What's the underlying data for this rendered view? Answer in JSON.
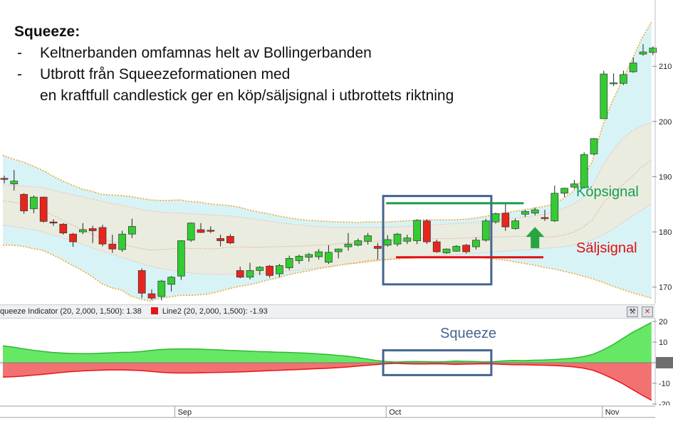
{
  "annotation": {
    "title": "Squeeze:",
    "bullets": [
      {
        "dash": "-",
        "lines": [
          "Keltnerbanden omfamnas helt av Bollingerbanden"
        ]
      },
      {
        "dash": "-",
        "lines": [
          "Utbrott från Squeezeformationen med",
          "en kraftfull candlestick ger en köp/säljsignal i utbrottets riktning"
        ]
      }
    ]
  },
  "labels": {
    "buy_signal": "Köpsignal",
    "sell_signal": "Säljsignal",
    "squeeze": "Squeeze"
  },
  "indicator_panel": {
    "legend_1": "queeze Indicator (20, 2,000, 1,500): 1.38",
    "legend_2": "Line2 (20, 2,000, 1,500): -1.93",
    "legend_2_color": "#e8141a"
  },
  "x_axis": {
    "labels": [
      "Sep",
      "Oct",
      "Nov"
    ]
  },
  "colors": {
    "up": "#33cc33",
    "down": "#e8251c",
    "bollinger_fill": "#d8f3f6",
    "keltner_fill": "#e9ecde",
    "buy": "#1a9e4f",
    "sell": "#e01010",
    "box": "#45658f",
    "pos_area": "#66e866",
    "neg_area": "#f27272"
  },
  "chart_data": [
    {
      "type": "candlestick",
      "title": "",
      "y_ticks": [
        170,
        180,
        190,
        200,
        210
      ],
      "ylim": [
        167,
        222
      ],
      "candles": [
        {
          "o": 189.7,
          "h": 190.2,
          "l": 188.8,
          "c": 189.5
        },
        {
          "o": 188.7,
          "h": 191.2,
          "l": 187.5,
          "c": 189.2
        },
        {
          "o": 186.8,
          "h": 187.0,
          "l": 183.3,
          "c": 183.8
        },
        {
          "o": 184.2,
          "h": 186.6,
          "l": 183.4,
          "c": 186.3
        },
        {
          "o": 186.3,
          "h": 186.4,
          "l": 181.7,
          "c": 181.9
        },
        {
          "o": 181.8,
          "h": 182.3,
          "l": 181.1,
          "c": 181.6
        },
        {
          "o": 181.4,
          "h": 181.6,
          "l": 179.5,
          "c": 179.8
        },
        {
          "o": 179.6,
          "h": 179.8,
          "l": 177.3,
          "c": 178.2
        },
        {
          "o": 180.0,
          "h": 181.6,
          "l": 179.6,
          "c": 180.4
        },
        {
          "o": 180.6,
          "h": 181.1,
          "l": 178.0,
          "c": 180.2
        },
        {
          "o": 180.8,
          "h": 181.3,
          "l": 177.4,
          "c": 177.8
        },
        {
          "o": 177.8,
          "h": 179.5,
          "l": 176.2,
          "c": 176.9
        },
        {
          "o": 176.8,
          "h": 180.2,
          "l": 176.4,
          "c": 179.6
        },
        {
          "o": 179.6,
          "h": 182.4,
          "l": 178.9,
          "c": 181.0
        },
        {
          "o": 173.0,
          "h": 173.4,
          "l": 168.0,
          "c": 168.9
        },
        {
          "o": 168.8,
          "h": 169.6,
          "l": 167.7,
          "c": 168.0
        },
        {
          "o": 168.3,
          "h": 171.3,
          "l": 167.6,
          "c": 171.1
        },
        {
          "o": 170.5,
          "h": 172.0,
          "l": 169.2,
          "c": 171.8
        },
        {
          "o": 172.0,
          "h": 178.5,
          "l": 171.3,
          "c": 178.4
        },
        {
          "o": 178.5,
          "h": 181.7,
          "l": 178.2,
          "c": 181.6
        },
        {
          "o": 180.4,
          "h": 181.6,
          "l": 179.8,
          "c": 179.9
        },
        {
          "o": 180.3,
          "h": 181.0,
          "l": 179.8,
          "c": 180.2
        },
        {
          "o": 178.8,
          "h": 179.5,
          "l": 177.4,
          "c": 178.4
        },
        {
          "o": 179.2,
          "h": 179.6,
          "l": 177.8,
          "c": 178.0
        },
        {
          "o": 173.0,
          "h": 173.7,
          "l": 171.6,
          "c": 171.8
        },
        {
          "o": 171.8,
          "h": 174.4,
          "l": 171.4,
          "c": 173.0
        },
        {
          "o": 173.0,
          "h": 173.8,
          "l": 172.2,
          "c": 173.6
        },
        {
          "o": 173.8,
          "h": 174.0,
          "l": 171.7,
          "c": 172.1
        },
        {
          "o": 172.4,
          "h": 174.2,
          "l": 171.8,
          "c": 173.9
        },
        {
          "o": 173.5,
          "h": 175.7,
          "l": 173.1,
          "c": 175.2
        },
        {
          "o": 174.8,
          "h": 175.9,
          "l": 174.2,
          "c": 175.6
        },
        {
          "o": 175.4,
          "h": 176.2,
          "l": 174.6,
          "c": 175.9
        },
        {
          "o": 175.5,
          "h": 176.9,
          "l": 175.0,
          "c": 176.4
        },
        {
          "o": 174.5,
          "h": 177.6,
          "l": 174.2,
          "c": 176.3
        },
        {
          "o": 176.4,
          "h": 177.0,
          "l": 175.2,
          "c": 176.9
        },
        {
          "o": 177.3,
          "h": 179.8,
          "l": 176.6,
          "c": 177.8
        },
        {
          "o": 177.6,
          "h": 178.8,
          "l": 177.4,
          "c": 178.4
        },
        {
          "o": 178.3,
          "h": 179.8,
          "l": 177.7,
          "c": 179.3
        },
        {
          "o": 177.4,
          "h": 178.0,
          "l": 175.0,
          "c": 177.0
        },
        {
          "o": 177.6,
          "h": 179.4,
          "l": 177.3,
          "c": 178.6
        },
        {
          "o": 177.8,
          "h": 179.8,
          "l": 177.4,
          "c": 179.6
        },
        {
          "o": 178.3,
          "h": 179.5,
          "l": 177.8,
          "c": 178.9
        },
        {
          "o": 178.4,
          "h": 182.3,
          "l": 177.8,
          "c": 182.1
        },
        {
          "o": 182.0,
          "h": 182.3,
          "l": 177.8,
          "c": 178.2
        },
        {
          "o": 178.2,
          "h": 178.6,
          "l": 176.2,
          "c": 176.4
        },
        {
          "o": 176.2,
          "h": 177.0,
          "l": 176.0,
          "c": 176.9
        },
        {
          "o": 176.5,
          "h": 177.6,
          "l": 176.4,
          "c": 177.4
        },
        {
          "o": 177.6,
          "h": 177.8,
          "l": 176.1,
          "c": 176.4
        },
        {
          "o": 177.3,
          "h": 179.0,
          "l": 176.8,
          "c": 178.5
        },
        {
          "o": 178.5,
          "h": 182.4,
          "l": 178.2,
          "c": 182.0
        },
        {
          "o": 181.8,
          "h": 183.5,
          "l": 181.5,
          "c": 183.3
        },
        {
          "o": 183.4,
          "h": 185.3,
          "l": 180.2,
          "c": 180.9
        },
        {
          "o": 180.6,
          "h": 182.4,
          "l": 180.4,
          "c": 182.0
        },
        {
          "o": 183.2,
          "h": 184.0,
          "l": 182.7,
          "c": 183.7
        },
        {
          "o": 183.4,
          "h": 184.4,
          "l": 183.0,
          "c": 184.0
        },
        {
          "o": 182.6,
          "h": 184.0,
          "l": 182.0,
          "c": 182.5
        },
        {
          "o": 182.0,
          "h": 188.4,
          "l": 181.8,
          "c": 187.0
        },
        {
          "o": 187.0,
          "h": 188.0,
          "l": 186.3,
          "c": 187.9
        },
        {
          "o": 188.1,
          "h": 189.4,
          "l": 187.8,
          "c": 188.7
        },
        {
          "o": 188.0,
          "h": 194.4,
          "l": 187.9,
          "c": 194.0
        },
        {
          "o": 194.1,
          "h": 197.0,
          "l": 193.9,
          "c": 196.9
        },
        {
          "o": 200.5,
          "h": 209.2,
          "l": 201.0,
          "c": 208.6
        },
        {
          "o": 206.9,
          "h": 208.7,
          "l": 206.4,
          "c": 207.0
        },
        {
          "o": 206.9,
          "h": 209.2,
          "l": 206.6,
          "c": 208.5
        },
        {
          "o": 209.0,
          "h": 211.6,
          "l": 208.8,
          "c": 210.6
        },
        {
          "o": 212.2,
          "h": 214.0,
          "l": 211.9,
          "c": 212.6
        },
        {
          "o": 212.5,
          "h": 213.6,
          "l": 212.0,
          "c": 213.3
        }
      ],
      "bollinger_upper": [
        193.9,
        193.2,
        192.7,
        192.0,
        191.2,
        190.2,
        189.3,
        188.5,
        187.8,
        187.4,
        186.8,
        186.7,
        186.6,
        186.4,
        186.1,
        185.8,
        185.7,
        185.7,
        185.8,
        185.5,
        185.4,
        185.1,
        184.9,
        184.8,
        184.5,
        184.0,
        183.6,
        183.3,
        182.9,
        182.6,
        182.3,
        182.1,
        182.0,
        181.9,
        181.8,
        181.8,
        181.7,
        181.8,
        181.8,
        181.8,
        181.9,
        182.0,
        182.1,
        182.2,
        182.2,
        182.2,
        182.2,
        182.3,
        182.5,
        182.8,
        183.1,
        183.4,
        183.7,
        184.0,
        184.3,
        184.6,
        185.0,
        186.0,
        187.3,
        189.6,
        192.9,
        199.1,
        203.6,
        207.3,
        211.1,
        215.0,
        218.0
      ],
      "bollinger_lower": [
        177.6,
        177.6,
        177.4,
        177.0,
        176.7,
        175.9,
        175.0,
        174.0,
        173.1,
        172.0,
        170.7,
        169.9,
        169.5,
        168.4,
        167.8,
        167.5,
        168.0,
        168.2,
        168.5,
        168.5,
        168.6,
        168.8,
        169.2,
        169.7,
        170.1,
        170.4,
        170.8,
        171.3,
        171.7,
        172.2,
        172.6,
        172.9,
        173.3,
        173.6,
        173.9,
        174.2,
        174.4,
        174.7,
        174.9,
        175.0,
        175.1,
        175.2,
        175.3,
        175.4,
        175.4,
        175.4,
        175.4,
        175.4,
        175.4,
        175.3,
        175.1,
        174.9,
        174.6,
        174.3,
        174.0,
        173.6,
        173.3,
        172.9,
        172.5,
        172.0,
        171.5,
        170.9,
        170.2,
        169.6,
        169.0,
        168.5,
        168.0
      ],
      "keltner_upper": [
        188.5,
        188.4,
        188.3,
        188.2,
        188.0,
        187.6,
        187.2,
        186.8,
        186.4,
        186.0,
        185.6,
        185.2,
        184.9,
        184.5,
        184.1,
        183.8,
        183.6,
        183.5,
        183.4,
        183.3,
        183.2,
        183.1,
        183.0,
        182.9,
        182.7,
        182.5,
        182.2,
        182.0,
        181.7,
        181.5,
        181.3,
        181.1,
        181.0,
        180.9,
        180.8,
        180.8,
        180.8,
        180.8,
        180.8,
        180.9,
        180.9,
        181.0,
        181.1,
        181.2,
        181.3,
        181.4,
        181.5,
        181.6,
        181.7,
        181.9,
        182.1,
        182.3,
        182.5,
        182.7,
        182.9,
        183.2,
        183.6,
        184.2,
        185.0,
        186.2,
        188.4,
        192.0,
        194.6,
        196.8,
        198.3,
        199.2,
        199.8
      ],
      "keltner_lower": [
        181.2,
        181.0,
        180.7,
        180.4,
        180.0,
        179.5,
        179.0,
        178.4,
        177.8,
        177.2,
        176.6,
        176.0,
        175.5,
        174.9,
        174.3,
        173.8,
        173.4,
        173.1,
        172.8,
        172.6,
        172.4,
        172.3,
        172.3,
        172.3,
        172.3,
        172.3,
        172.4,
        172.5,
        172.7,
        172.9,
        173.1,
        173.3,
        173.5,
        173.7,
        173.9,
        174.1,
        174.3,
        174.5,
        174.7,
        174.9,
        175.1,
        175.3,
        175.4,
        175.6,
        175.7,
        175.8,
        175.9,
        176.0,
        176.1,
        176.2,
        176.4,
        176.5,
        176.6,
        176.7,
        176.8,
        177.0,
        177.1,
        177.3,
        177.6,
        178.0,
        178.6,
        179.4,
        180.4,
        181.6,
        182.8,
        183.9,
        185.1
      ],
      "bollinger_mid": [
        185.6,
        185.4,
        185.1,
        184.6,
        184.0,
        183.1,
        182.2,
        181.3,
        180.5,
        179.7,
        178.8,
        178.3,
        178.0,
        177.4,
        177.0,
        176.7,
        176.8,
        176.9,
        177.1,
        177.0,
        177.0,
        176.9,
        177.0,
        177.2,
        177.3,
        177.2,
        177.2,
        177.3,
        177.3,
        177.4,
        177.4,
        177.5,
        177.6,
        177.7,
        177.8,
        178.0,
        178.0,
        178.2,
        178.3,
        178.4,
        178.5,
        178.6,
        178.7,
        178.8,
        178.8,
        178.8,
        178.8,
        178.9,
        179.0,
        179.0,
        179.1,
        179.1,
        179.2,
        179.2,
        179.2,
        179.1,
        179.1,
        179.4,
        179.9,
        180.8,
        182.2,
        185.0,
        186.9,
        188.4,
        190.0,
        191.7,
        193.0
      ],
      "signals": {
        "buy_level": 185.2,
        "sell_level": 175.4,
        "buy_x_range": [
          39,
          53
        ],
        "sell_x_range": [
          40,
          55
        ]
      },
      "squeeze_box": {
        "x_range": [
          38.7,
          49.7
        ],
        "y_range": [
          170.5,
          186.5
        ]
      }
    },
    {
      "type": "area",
      "title": "",
      "y_ticks": [
        20,
        10,
        0,
        -10,
        -20
      ],
      "ylim": [
        -20,
        20
      ],
      "series": [
        {
          "name": "queeze Indicator",
          "values": [
            8.2,
            7.6,
            6.8,
            6.1,
            5.5,
            5.0,
            4.7,
            4.5,
            4.4,
            4.4,
            4.6,
            4.8,
            5.0,
            5.1,
            5.4,
            5.9,
            6.4,
            6.6,
            6.7,
            6.7,
            6.6,
            6.4,
            6.2,
            6.0,
            5.8,
            5.6,
            5.4,
            5.3,
            5.1,
            5.0,
            4.8,
            4.6,
            4.3,
            4.0,
            3.6,
            3.2,
            2.6,
            1.8,
            1.1,
            0.6,
            0.3,
            0.5,
            0.6,
            0.5,
            0.4,
            0.5,
            0.8,
            0.7,
            0.6,
            0.4,
            0.5,
            0.9,
            1.1,
            1.0,
            1.2,
            1.3,
            1.5,
            1.8,
            2.2,
            2.9,
            4.0,
            6.0,
            8.5,
            11.5,
            14.5,
            17.0,
            19.5
          ]
        },
        {
          "name": "Line2",
          "values": [
            -7.0,
            -6.8,
            -6.5,
            -6.1,
            -5.7,
            -5.2,
            -4.7,
            -4.3,
            -4.0,
            -3.8,
            -3.6,
            -3.5,
            -3.5,
            -3.6,
            -3.8,
            -4.2,
            -4.6,
            -4.9,
            -5.0,
            -5.0,
            -4.9,
            -4.8,
            -4.7,
            -4.6,
            -4.5,
            -4.3,
            -4.1,
            -3.9,
            -3.7,
            -3.5,
            -3.3,
            -3.1,
            -2.9,
            -2.7,
            -2.4,
            -2.1,
            -1.7,
            -1.3,
            -0.9,
            -0.5,
            -0.3,
            -0.5,
            -0.6,
            -0.6,
            -0.5,
            -0.6,
            -0.8,
            -0.7,
            -0.6,
            -0.5,
            -0.6,
            -0.8,
            -1.0,
            -1.0,
            -1.1,
            -1.2,
            -1.4,
            -1.6,
            -2.0,
            -2.6,
            -3.6,
            -5.4,
            -7.6,
            -10.0,
            -12.8,
            -15.6,
            -18.2
          ]
        }
      ],
      "squeeze_box": {
        "x_range": [
          38.7,
          49.7
        ],
        "y_range": [
          -6,
          6
        ]
      }
    }
  ]
}
